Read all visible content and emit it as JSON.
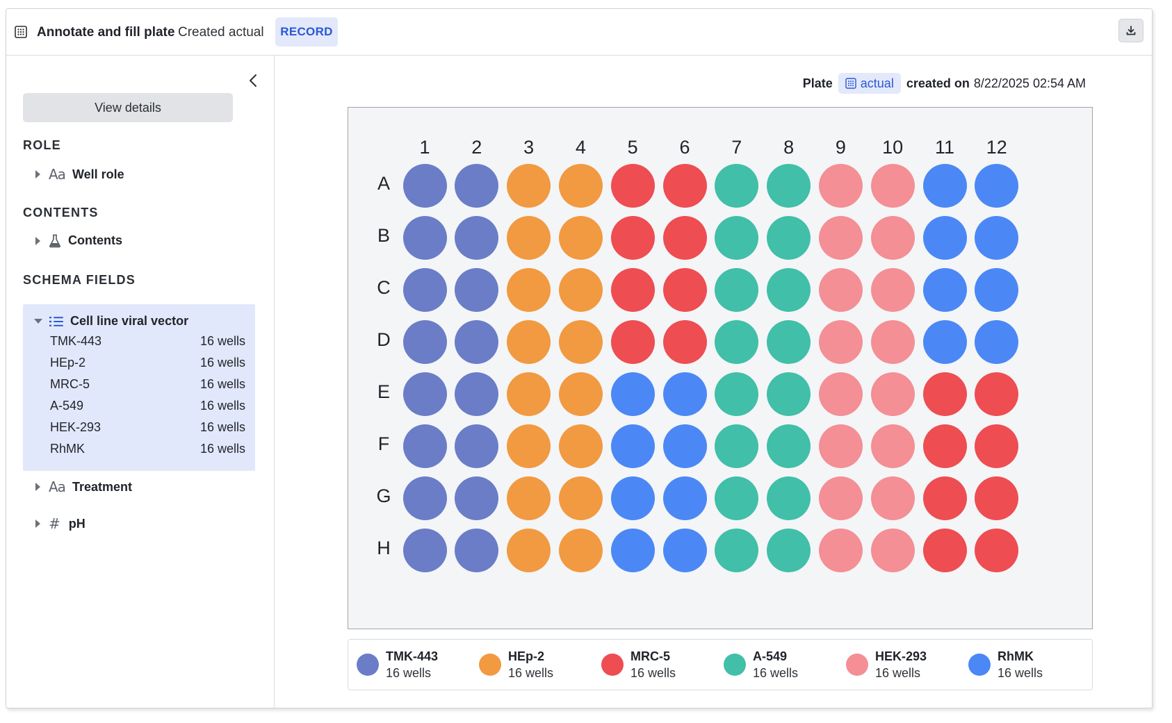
{
  "header": {
    "title": "Annotate and fill plate",
    "subtitle": "Created actual",
    "record_label": "RECORD"
  },
  "sidebar": {
    "view_details_label": "View details",
    "sections": {
      "role": "ROLE",
      "contents": "CONTENTS",
      "schema_fields": "SCHEMA FIELDS"
    },
    "role_item": "Well role",
    "contents_item": "Contents",
    "schema_field": {
      "name": "Cell line viral vector",
      "items": [
        {
          "label": "TMK-443",
          "count": "16 wells"
        },
        {
          "label": "HEp-2",
          "count": "16 wells"
        },
        {
          "label": "MRC-5",
          "count": "16 wells"
        },
        {
          "label": "A-549",
          "count": "16 wells"
        },
        {
          "label": "HEK-293",
          "count": "16 wells"
        },
        {
          "label": "RhMK",
          "count": "16 wells"
        }
      ]
    },
    "other_fields": [
      {
        "label": "Treatment",
        "icon": "text-type-icon"
      },
      {
        "label": "pH",
        "icon": "hash-icon"
      }
    ]
  },
  "plate_caption": {
    "prefix": "Plate",
    "chip": "actual",
    "created_label": "created on",
    "date": "8/22/2025 02:54 AM"
  },
  "plate": {
    "columns": [
      "1",
      "2",
      "3",
      "4",
      "5",
      "6",
      "7",
      "8",
      "9",
      "10",
      "11",
      "12"
    ],
    "rows": [
      "A",
      "B",
      "C",
      "D",
      "E",
      "F",
      "G",
      "H"
    ],
    "cell_lines": [
      {
        "name": "TMK-443",
        "color": "#6b7dc7"
      },
      {
        "name": "HEp-2",
        "color": "#f19a41"
      },
      {
        "name": "MRC-5",
        "color": "#ee4d52"
      },
      {
        "name": "A-549",
        "color": "#41bfa8"
      },
      {
        "name": "HEK-293",
        "color": "#f38f95"
      },
      {
        "name": "RhMK",
        "color": "#4b88f5"
      }
    ],
    "layout": [
      [
        0,
        0,
        1,
        1,
        2,
        2,
        3,
        3,
        4,
        4,
        5,
        5
      ],
      [
        0,
        0,
        1,
        1,
        2,
        2,
        3,
        3,
        4,
        4,
        5,
        5
      ],
      [
        0,
        0,
        1,
        1,
        2,
        2,
        3,
        3,
        4,
        4,
        5,
        5
      ],
      [
        0,
        0,
        1,
        1,
        2,
        2,
        3,
        3,
        4,
        4,
        5,
        5
      ],
      [
        0,
        0,
        1,
        1,
        5,
        5,
        3,
        3,
        4,
        4,
        2,
        2
      ],
      [
        0,
        0,
        1,
        1,
        5,
        5,
        3,
        3,
        4,
        4,
        2,
        2
      ],
      [
        0,
        0,
        1,
        1,
        5,
        5,
        3,
        3,
        4,
        4,
        2,
        2
      ],
      [
        0,
        0,
        1,
        1,
        5,
        5,
        3,
        3,
        4,
        4,
        2,
        2
      ]
    ]
  },
  "legend": [
    {
      "name": "TMK-443",
      "count": "16 wells",
      "color": "#6b7dc7"
    },
    {
      "name": "HEp-2",
      "count": "16 wells",
      "color": "#f19a41"
    },
    {
      "name": "MRC-5",
      "count": "16 wells",
      "color": "#ee4d52"
    },
    {
      "name": "A-549",
      "count": "16 wells",
      "color": "#41bfa8"
    },
    {
      "name": "HEK-293",
      "count": "16 wells",
      "color": "#f38f95"
    },
    {
      "name": "RhMK",
      "count": "16 wells",
      "color": "#4b88f5"
    }
  ]
}
